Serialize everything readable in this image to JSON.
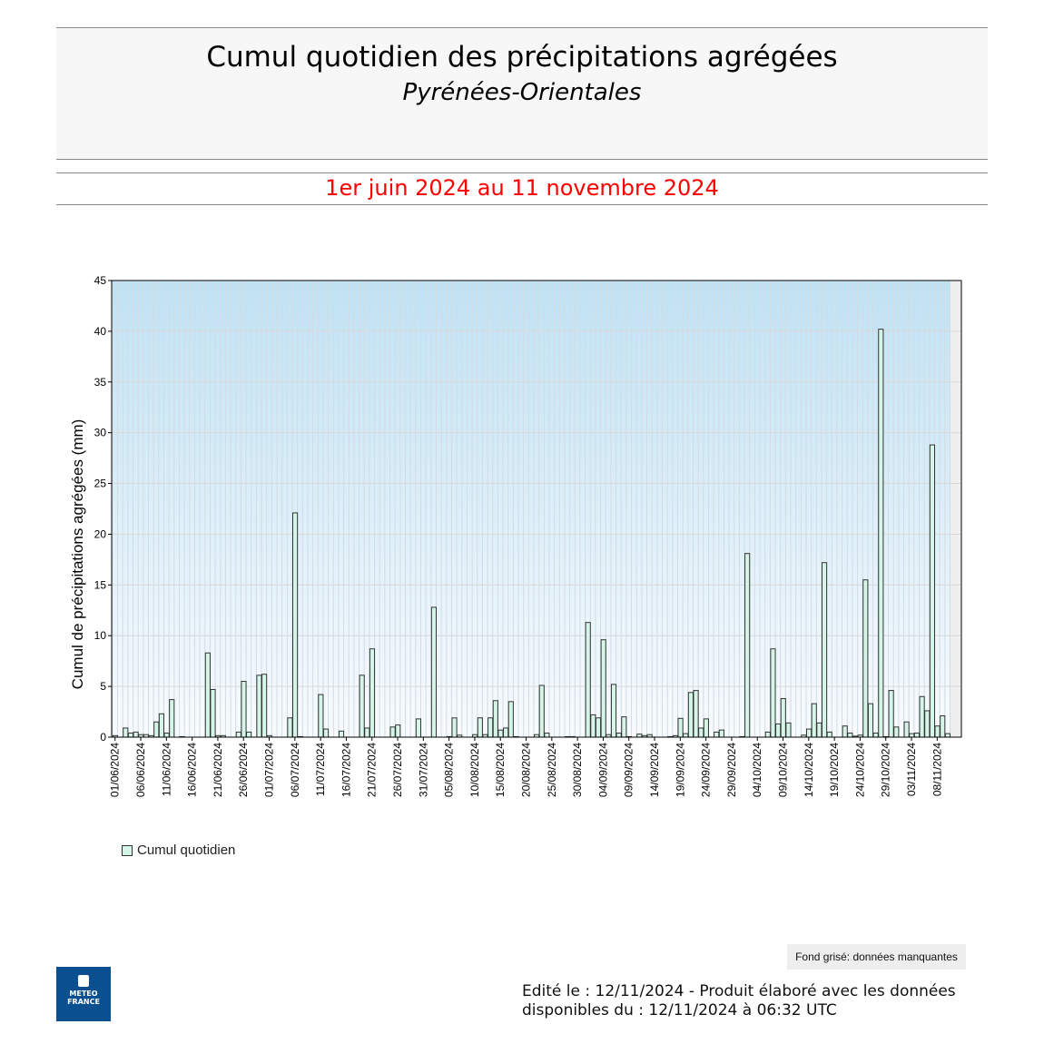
{
  "header": {
    "title": "Cumul quotidien des précipitations agrégées",
    "subtitle": "Pyrénées-Orientales",
    "period": "1er juin 2024 au 11 novembre 2024"
  },
  "chart_data": {
    "type": "bar",
    "title": "Cumul quotidien des précipitations agrégées",
    "ylabel": "Cumul de précipitations agrégées (mm)",
    "xlabel": "",
    "ylim": [
      0,
      45
    ],
    "yticks": [
      0,
      5,
      10,
      15,
      20,
      25,
      30,
      35,
      40,
      45
    ],
    "grid": true,
    "legend_position": "bottom-left",
    "xtick_labels": [
      "01/06/2024",
      "06/06/2024",
      "11/06/2024",
      "16/06/2024",
      "21/06/2024",
      "26/06/2024",
      "01/07/2024",
      "06/07/2024",
      "11/07/2024",
      "16/07/2024",
      "21/07/2024",
      "26/07/2024",
      "31/07/2024",
      "05/08/2024",
      "10/08/2024",
      "15/08/2024",
      "20/08/2024",
      "25/08/2024",
      "30/08/2024",
      "04/09/2024",
      "09/09/2024",
      "14/09/2024",
      "19/09/2024",
      "24/09/2024",
      "29/09/2024",
      "04/10/2024",
      "09/10/2024",
      "14/10/2024",
      "19/10/2024",
      "24/10/2024",
      "29/10/2024",
      "03/11/2024",
      "08/11/2024"
    ],
    "series": [
      {
        "name": "Cumul quotidien",
        "color": "#d6f5e9",
        "values": [
          0.15,
          0,
          0.9,
          0.4,
          0.5,
          0.25,
          0.25,
          0.15,
          1.5,
          2.3,
          0.4,
          3.7,
          0,
          0.05,
          0,
          0,
          0,
          0,
          8.3,
          4.7,
          0.15,
          0.15,
          0,
          0,
          0.5,
          5.5,
          0.5,
          0,
          6.1,
          6.2,
          0.15,
          0,
          0,
          0,
          1.9,
          22.1,
          0.05,
          0,
          0,
          0,
          4.2,
          0.8,
          0,
          0,
          0.6,
          0,
          0,
          0,
          6.1,
          0.9,
          8.7,
          0,
          0,
          0,
          1.0,
          1.2,
          0,
          0,
          0,
          1.8,
          0,
          0,
          12.8,
          0,
          0,
          0.05,
          1.9,
          0.2,
          0,
          0,
          0.25,
          1.9,
          0.25,
          1.9,
          3.6,
          0.7,
          0.9,
          3.5,
          0.05,
          0,
          0,
          0,
          0.25,
          5.1,
          0.4,
          0,
          0,
          0,
          0.05,
          0.05,
          0,
          0,
          11.3,
          2.2,
          1.9,
          9.6,
          0.25,
          5.2,
          0.4,
          2.0,
          0.05,
          0,
          0.3,
          0.15,
          0.25,
          0,
          0,
          0,
          0.05,
          0.15,
          1.85,
          0.35,
          4.4,
          4.6,
          0.9,
          1.8,
          0,
          0.5,
          0.7,
          0,
          0,
          0,
          0.05,
          18.1,
          0,
          0,
          0,
          0.5,
          8.7,
          1.3,
          3.8,
          1.4,
          0,
          0,
          0.2,
          0.8,
          3.3,
          1.4,
          17.2,
          0.5,
          0,
          0,
          1.1,
          0.4,
          0.1,
          0.2,
          15.5,
          3.3,
          0.4,
          40.2,
          0.05,
          4.6,
          1.0,
          0,
          1.5,
          0.35,
          0.4,
          4.0,
          2.6,
          28.8,
          1.1,
          2.1,
          0.35
        ]
      }
    ],
    "missing_data_color": "#eeeeee"
  },
  "legend": {
    "label": "Cumul quotidien"
  },
  "footer": {
    "missing_note": "Fond grisé: données manquantes",
    "edit_line1": "Edité le : 12/11/2024 - Produit élaboré avec les données",
    "edit_line2": "disponibles du : 12/11/2024 à 06:32 UTC",
    "logo_text1": "METEO",
    "logo_text2": "FRANCE"
  }
}
